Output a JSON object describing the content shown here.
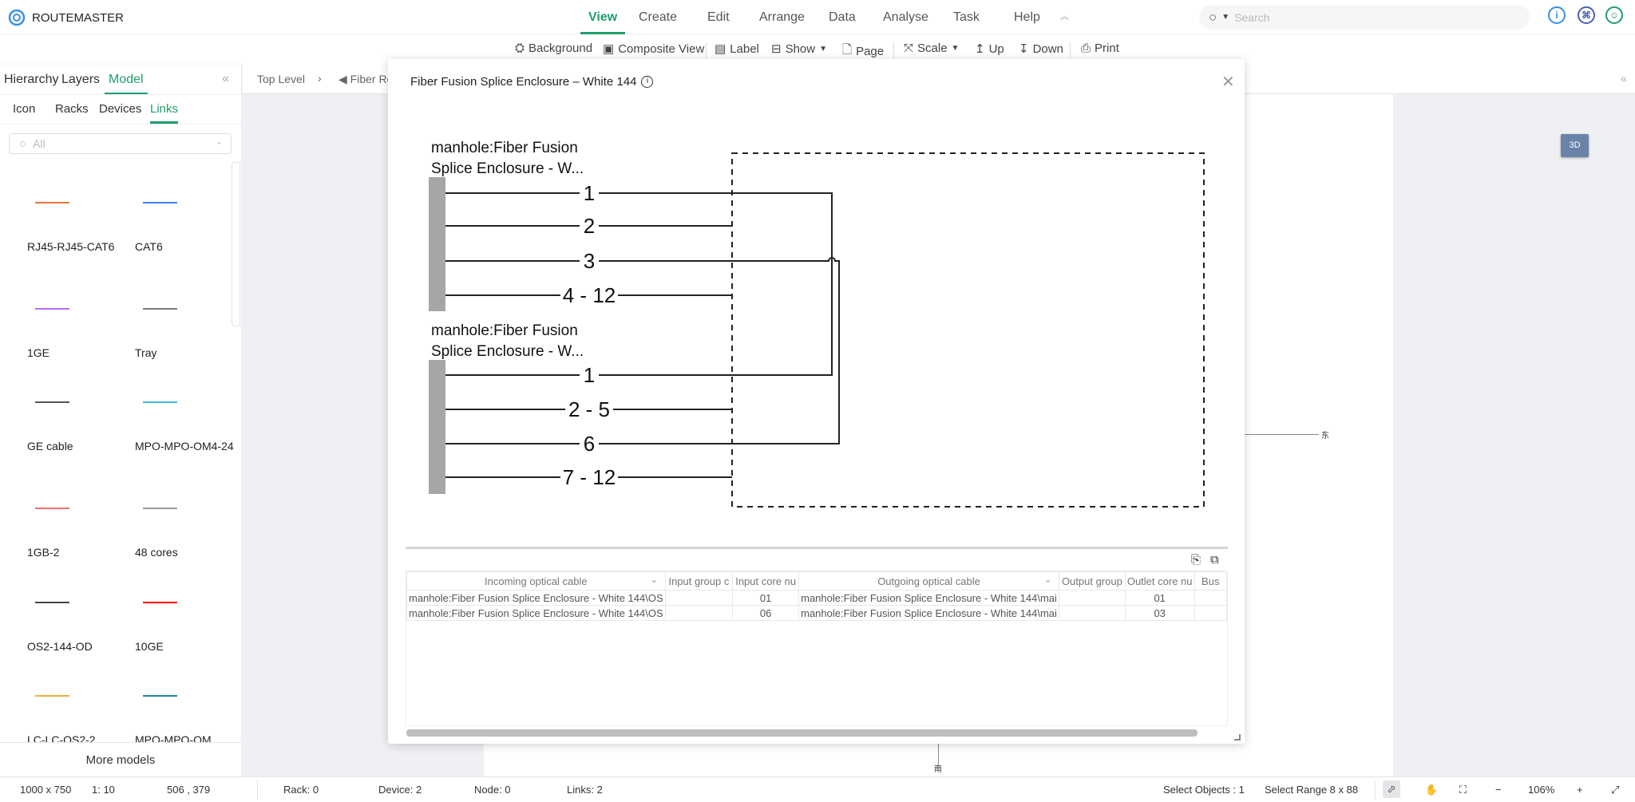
{
  "app": {
    "name": "ROUTEMASTER",
    "brand_color": "#1e9e6a"
  },
  "nav": {
    "items": [
      "View",
      "Create",
      "Edit",
      "Arrange",
      "Data",
      "Analyse",
      "Task",
      "Help"
    ],
    "active": "View",
    "collapse_icon": "double-chevron-up-icon"
  },
  "search": {
    "placeholder": "Search"
  },
  "header_icons": [
    "info-icon",
    "command-icon",
    "user-icon"
  ],
  "toolbar": {
    "background": "Background",
    "composite_view": "Composite View",
    "label": "Label",
    "show": "Show",
    "page": "Page",
    "scale": "Scale",
    "up": "Up",
    "down": "Down",
    "print": "Print"
  },
  "left_panel": {
    "tabs": [
      "Hierarchy",
      "Layers",
      "Model"
    ],
    "active_tab": "Model",
    "sub_tabs": [
      "Icon",
      "Racks",
      "Devices",
      "Links"
    ],
    "active_sub_tab": "Links",
    "filter_placeholder": "All",
    "items": [
      {
        "label": "RJ45-RJ45-CAT6",
        "color": "#e8743b"
      },
      {
        "label": "CAT6",
        "color": "#3b82f6"
      },
      {
        "label": "1GE",
        "color": "#c06cf0"
      },
      {
        "label": "Tray",
        "color": "#7a7a7a"
      },
      {
        "label": "GE cable",
        "color": "#555555"
      },
      {
        "label": "MPO-MPO-OM4-24",
        "color": "#4ab6d6"
      },
      {
        "label": "1GB-2",
        "color": "#f07070"
      },
      {
        "label": "48 cores",
        "color": "#999999"
      },
      {
        "label": "OS2-144-OD",
        "color": "#444444"
      },
      {
        "label": "10GE",
        "color": "#ff0000"
      },
      {
        "label": "LC-LC-OS2-2",
        "color": "#f0b040"
      },
      {
        "label": "MPO-MPO-OM",
        "color": "#1a85b0"
      }
    ],
    "more": "More models"
  },
  "breadcrumb": {
    "items": [
      "Top Level",
      "Fiber Re"
    ]
  },
  "canvas": {
    "east_label": "东",
    "south_label": "南",
    "button_3d": "3D"
  },
  "modal": {
    "title": "Fiber Fusion Splice Enclosure – White 144",
    "diagram": {
      "cable_a": {
        "line1": "manhole:Fiber Fusion",
        "line2": "Splice Enclosure - W...",
        "ports": [
          "1",
          "2",
          "3",
          "4 - 12"
        ]
      },
      "cable_b": {
        "line1": "manhole:Fiber Fusion",
        "line2": "Splice Enclosure - W...",
        "ports": [
          "1",
          "2 - 5",
          "6",
          "7 - 12"
        ]
      }
    },
    "table": {
      "columns": [
        "Incoming optical cable",
        "Input group c",
        "Input core nu",
        "Outgoing optical cable",
        "Output group",
        "Outlet core nu",
        "Bus"
      ],
      "rows": [
        [
          "manhole:Fiber Fusion Splice Enclosure - White 144\\OS",
          "",
          "01",
          "manhole:Fiber Fusion Splice Enclosure - White 144\\mai",
          "",
          "01",
          ""
        ],
        [
          "manhole:Fiber Fusion Splice Enclosure - White 144\\OS",
          "",
          "06",
          "manhole:Fiber Fusion Splice Enclosure - White 144\\mai",
          "",
          "03",
          ""
        ]
      ]
    }
  },
  "status": {
    "size": "1000 x 750",
    "ratio": "1: 10",
    "coords": "506 , 379",
    "rack": "Rack: 0",
    "device": "Device: 2",
    "node": "Node: 0",
    "links": "Links: 2",
    "select_objects": "Select Objects :  1",
    "select_range": "Select Range  8 x 88",
    "zoom": "106%"
  }
}
